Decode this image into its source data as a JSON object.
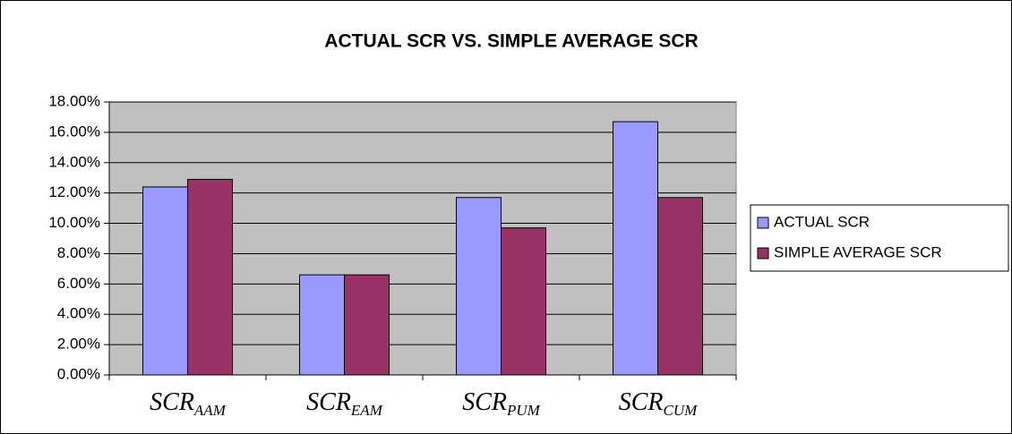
{
  "chart_data": {
    "type": "bar",
    "title": "ACTUAL SCR VS. SIMPLE AVERAGE SCR",
    "categories": [
      {
        "text": "SCR",
        "subscript": "AAM"
      },
      {
        "text": "SCR",
        "subscript": "EAM"
      },
      {
        "text": "SCR",
        "subscript": "PUM"
      },
      {
        "text": "SCR",
        "subscript": "CUM"
      }
    ],
    "series": [
      {
        "name": "ACTUAL SCR",
        "color": "#9999ff",
        "values": [
          12.4,
          6.6,
          11.7,
          16.7
        ]
      },
      {
        "name": "SIMPLE AVERAGE SCR",
        "color": "#993366",
        "values": [
          12.9,
          6.6,
          9.7,
          11.7
        ]
      }
    ],
    "ylim": [
      0,
      18
    ],
    "yticks": [
      {
        "value": 0,
        "label": "0.00%"
      },
      {
        "value": 2,
        "label": "2.00%"
      },
      {
        "value": 4,
        "label": "4.00%"
      },
      {
        "value": 6,
        "label": "6.00%"
      },
      {
        "value": 8,
        "label": "8.00%"
      },
      {
        "value": 10,
        "label": "10.00%"
      },
      {
        "value": 12,
        "label": "12.00%"
      },
      {
        "value": 14,
        "label": "14.00%"
      },
      {
        "value": 16,
        "label": "16.00%"
      },
      {
        "value": 18,
        "label": "18.00%"
      }
    ],
    "grid": true,
    "legend": "right",
    "plot_background": "#c0c0c0"
  }
}
